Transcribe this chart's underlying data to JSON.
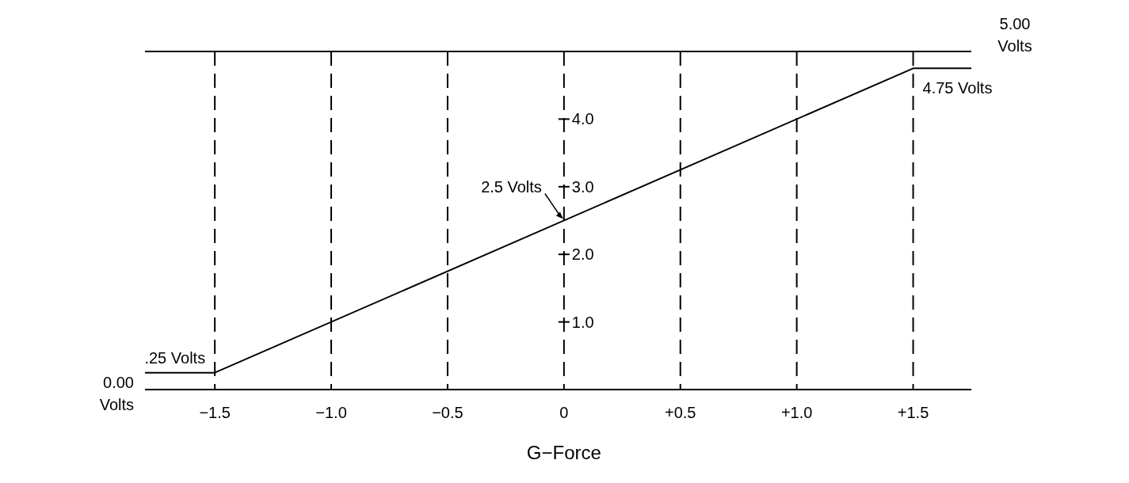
{
  "chart_data": {
    "type": "line",
    "xlabel": "G−Force",
    "x": [
      -1.8,
      -1.5,
      1.5,
      1.75
    ],
    "series": [
      {
        "color": "#000000",
        "values": [
          0.25,
          0.25,
          4.75,
          4.75
        ]
      }
    ],
    "xlim": [
      -1.8,
      1.75
    ],
    "xticks": [
      {
        "value": -1.5,
        "label": "−1.5"
      },
      {
        "value": -1,
        "label": "−1.0"
      },
      {
        "value": -0.5,
        "label": "−0.5"
      },
      0,
      {
        "value": 0.5,
        "label": "+0.5"
      },
      {
        "value": 1,
        "label": "+1.0"
      },
      {
        "value": 1.5,
        "label": "+1.5"
      }
    ],
    "ylim": [
      0,
      5
    ],
    "yticks": [
      {
        "value": 1,
        "label": "1.0"
      },
      {
        "value": 2,
        "label": "2.0"
      },
      {
        "value": 3,
        "label": "3.0"
      },
      {
        "value": 4,
        "label": "4.0"
      }
    ],
    "ref_lines": [
      {
        "axis": "y",
        "value": 5,
        "label": "5.00 Volts"
      }
    ],
    "grid": "x",
    "marker": "none",
    "line_style": "solid",
    "annotations": [
      "0.00 Volts",
      {
        "text": ".25 Volts",
        "x": -1.5,
        "y": 0.25
      },
      {
        "text": "2.5 Volts",
        "x": 0,
        "y": 2.5
      },
      {
        "text": "4.75 Volts",
        "x": 1.5,
        "y": 4.75
      }
    ]
  }
}
